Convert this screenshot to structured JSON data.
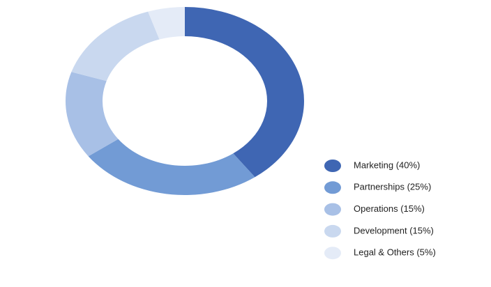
{
  "chart_data": {
    "type": "donut",
    "categories": [
      "Marketing (40%)",
      "Partnerships (25%)",
      "Operations (15%)",
      "Development (15%)",
      "Legal & Others (5%)"
    ],
    "values": [
      40,
      25,
      15,
      15,
      5
    ],
    "colors": [
      "#3f66b3",
      "#729bd5",
      "#a8c0e6",
      "#c9d8ef",
      "#e4ebf7"
    ]
  }
}
